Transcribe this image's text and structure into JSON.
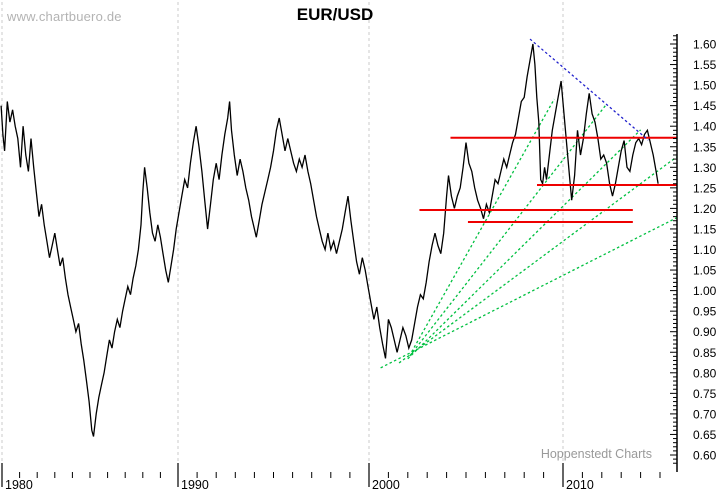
{
  "watermark": "www.chartbuero.de",
  "title": "EUR/USD",
  "credit": "Hoppenstedt Charts",
  "colors": {
    "price": "#000000",
    "support_resistance": "#ee0000",
    "uptrend_fan": "#00c040",
    "downtrend": "#2222cc",
    "grid": "#cbcbcb",
    "axis": "#000000",
    "watermark_text": "#b3b3b3",
    "credit_text": "#9a9a9a"
  },
  "chart_data": {
    "type": "line",
    "title": "EUR/USD",
    "legend": "none",
    "grid": "vertical-dashed-at-decades-only",
    "x_axis": {
      "label": "",
      "tick_labels": [
        "1980",
        "1990",
        "2000",
        "2010"
      ],
      "minor_tick_every_years": 1,
      "range_years": [
        1979.9,
        2015.9
      ]
    },
    "y_axis": {
      "side": "right",
      "tick_labels": [
        "1.60",
        "1.55",
        "1.50",
        "1.45",
        "1.40",
        "1.35",
        "1.30",
        "1.25",
        "1.20",
        "1.15",
        "1.10",
        "1.05",
        "1.00",
        "0.95",
        "0.90",
        "0.85",
        "0.80",
        "0.75",
        "0.70",
        "0.65",
        "0.60"
      ],
      "major_step": 0.05,
      "minor_step": 0.01,
      "range": [
        0.56,
        1.625
      ]
    },
    "series": [
      {
        "name": "EUR/USD monthly close",
        "color": "#000000",
        "points": [
          [
            1979.95,
            1.45
          ],
          [
            1980.05,
            1.38
          ],
          [
            1980.15,
            1.34
          ],
          [
            1980.3,
            1.46
          ],
          [
            1980.45,
            1.41
          ],
          [
            1980.6,
            1.44
          ],
          [
            1980.75,
            1.4
          ],
          [
            1980.9,
            1.37
          ],
          [
            1981.05,
            1.3
          ],
          [
            1981.2,
            1.4
          ],
          [
            1981.35,
            1.33
          ],
          [
            1981.5,
            1.29
          ],
          [
            1981.65,
            1.37
          ],
          [
            1981.8,
            1.3
          ],
          [
            1981.95,
            1.24
          ],
          [
            1982.1,
            1.18
          ],
          [
            1982.25,
            1.21
          ],
          [
            1982.4,
            1.16
          ],
          [
            1982.55,
            1.12
          ],
          [
            1982.7,
            1.08
          ],
          [
            1982.85,
            1.11
          ],
          [
            1983.0,
            1.14
          ],
          [
            1983.15,
            1.1
          ],
          [
            1983.3,
            1.06
          ],
          [
            1983.45,
            1.08
          ],
          [
            1983.6,
            1.03
          ],
          [
            1983.75,
            0.99
          ],
          [
            1983.9,
            0.96
          ],
          [
            1984.05,
            0.93
          ],
          [
            1984.2,
            0.9
          ],
          [
            1984.35,
            0.92
          ],
          [
            1984.5,
            0.87
          ],
          [
            1984.65,
            0.83
          ],
          [
            1984.8,
            0.78
          ],
          [
            1984.95,
            0.73
          ],
          [
            1985.1,
            0.66
          ],
          [
            1985.2,
            0.645
          ],
          [
            1985.35,
            0.7
          ],
          [
            1985.5,
            0.74
          ],
          [
            1985.65,
            0.77
          ],
          [
            1985.8,
            0.8
          ],
          [
            1985.95,
            0.84
          ],
          [
            1986.1,
            0.88
          ],
          [
            1986.25,
            0.86
          ],
          [
            1986.4,
            0.9
          ],
          [
            1986.55,
            0.93
          ],
          [
            1986.7,
            0.91
          ],
          [
            1986.85,
            0.95
          ],
          [
            1987.0,
            0.98
          ],
          [
            1987.15,
            1.01
          ],
          [
            1987.3,
            0.99
          ],
          [
            1987.45,
            1.03
          ],
          [
            1987.6,
            1.06
          ],
          [
            1987.75,
            1.1
          ],
          [
            1987.9,
            1.16
          ],
          [
            1988.0,
            1.24
          ],
          [
            1988.1,
            1.3
          ],
          [
            1988.25,
            1.25
          ],
          [
            1988.4,
            1.19
          ],
          [
            1988.55,
            1.14
          ],
          [
            1988.7,
            1.12
          ],
          [
            1988.85,
            1.16
          ],
          [
            1989.0,
            1.13
          ],
          [
            1989.15,
            1.09
          ],
          [
            1989.3,
            1.05
          ],
          [
            1989.45,
            1.02
          ],
          [
            1989.6,
            1.06
          ],
          [
            1989.75,
            1.1
          ],
          [
            1989.9,
            1.15
          ],
          [
            1990.05,
            1.19
          ],
          [
            1990.2,
            1.23
          ],
          [
            1990.35,
            1.27
          ],
          [
            1990.5,
            1.25
          ],
          [
            1990.65,
            1.31
          ],
          [
            1990.8,
            1.36
          ],
          [
            1990.95,
            1.4
          ],
          [
            1991.1,
            1.35
          ],
          [
            1991.25,
            1.29
          ],
          [
            1991.4,
            1.22
          ],
          [
            1991.55,
            1.15
          ],
          [
            1991.7,
            1.21
          ],
          [
            1991.85,
            1.27
          ],
          [
            1992.0,
            1.31
          ],
          [
            1992.15,
            1.27
          ],
          [
            1992.3,
            1.33
          ],
          [
            1992.45,
            1.38
          ],
          [
            1992.6,
            1.42
          ],
          [
            1992.7,
            1.46
          ],
          [
            1992.8,
            1.39
          ],
          [
            1992.95,
            1.33
          ],
          [
            1993.1,
            1.28
          ],
          [
            1993.25,
            1.32
          ],
          [
            1993.4,
            1.29
          ],
          [
            1993.55,
            1.25
          ],
          [
            1993.7,
            1.22
          ],
          [
            1993.85,
            1.18
          ],
          [
            1994.0,
            1.15
          ],
          [
            1994.1,
            1.13
          ],
          [
            1994.25,
            1.17
          ],
          [
            1994.4,
            1.21
          ],
          [
            1994.55,
            1.24
          ],
          [
            1994.7,
            1.27
          ],
          [
            1994.85,
            1.3
          ],
          [
            1995.0,
            1.34
          ],
          [
            1995.15,
            1.39
          ],
          [
            1995.3,
            1.42
          ],
          [
            1995.45,
            1.38
          ],
          [
            1995.6,
            1.34
          ],
          [
            1995.75,
            1.37
          ],
          [
            1995.9,
            1.34
          ],
          [
            1996.05,
            1.31
          ],
          [
            1996.2,
            1.29
          ],
          [
            1996.35,
            1.32
          ],
          [
            1996.5,
            1.3
          ],
          [
            1996.65,
            1.33
          ],
          [
            1996.8,
            1.29
          ],
          [
            1996.95,
            1.26
          ],
          [
            1997.1,
            1.22
          ],
          [
            1997.25,
            1.18
          ],
          [
            1997.4,
            1.15
          ],
          [
            1997.55,
            1.12
          ],
          [
            1997.7,
            1.1
          ],
          [
            1997.85,
            1.14
          ],
          [
            1998.0,
            1.1
          ],
          [
            1998.15,
            1.12
          ],
          [
            1998.3,
            1.09
          ],
          [
            1998.45,
            1.12
          ],
          [
            1998.6,
            1.15
          ],
          [
            1998.75,
            1.19
          ],
          [
            1998.9,
            1.23
          ],
          [
            1999.05,
            1.17
          ],
          [
            1999.2,
            1.12
          ],
          [
            1999.35,
            1.07
          ],
          [
            1999.5,
            1.04
          ],
          [
            1999.65,
            1.08
          ],
          [
            1999.8,
            1.05
          ],
          [
            1999.95,
            1.01
          ],
          [
            2000.1,
            0.97
          ],
          [
            2000.25,
            0.93
          ],
          [
            2000.4,
            0.96
          ],
          [
            2000.55,
            0.91
          ],
          [
            2000.7,
            0.87
          ],
          [
            2000.85,
            0.835
          ],
          [
            2001.0,
            0.93
          ],
          [
            2001.15,
            0.91
          ],
          [
            2001.3,
            0.88
          ],
          [
            2001.45,
            0.85
          ],
          [
            2001.6,
            0.88
          ],
          [
            2001.75,
            0.91
          ],
          [
            2001.9,
            0.89
          ],
          [
            2002.05,
            0.86
          ],
          [
            2002.2,
            0.88
          ],
          [
            2002.35,
            0.92
          ],
          [
            2002.5,
            0.96
          ],
          [
            2002.65,
            0.99
          ],
          [
            2002.8,
            0.98
          ],
          [
            2002.95,
            1.02
          ],
          [
            2003.1,
            1.07
          ],
          [
            2003.25,
            1.11
          ],
          [
            2003.4,
            1.14
          ],
          [
            2003.55,
            1.11
          ],
          [
            2003.7,
            1.09
          ],
          [
            2003.85,
            1.14
          ],
          [
            2004.0,
            1.23
          ],
          [
            2004.1,
            1.28
          ],
          [
            2004.25,
            1.23
          ],
          [
            2004.4,
            1.2
          ],
          [
            2004.55,
            1.23
          ],
          [
            2004.7,
            1.25
          ],
          [
            2004.85,
            1.3
          ],
          [
            2005.0,
            1.36
          ],
          [
            2005.15,
            1.31
          ],
          [
            2005.3,
            1.29
          ],
          [
            2005.45,
            1.25
          ],
          [
            2005.6,
            1.22
          ],
          [
            2005.75,
            1.2
          ],
          [
            2005.9,
            1.175
          ],
          [
            2006.05,
            1.21
          ],
          [
            2006.2,
            1.19
          ],
          [
            2006.35,
            1.23
          ],
          [
            2006.5,
            1.27
          ],
          [
            2006.65,
            1.26
          ],
          [
            2006.8,
            1.29
          ],
          [
            2006.95,
            1.32
          ],
          [
            2007.1,
            1.3
          ],
          [
            2007.25,
            1.33
          ],
          [
            2007.4,
            1.36
          ],
          [
            2007.55,
            1.38
          ],
          [
            2007.7,
            1.42
          ],
          [
            2007.85,
            1.46
          ],
          [
            2008.0,
            1.47
          ],
          [
            2008.15,
            1.52
          ],
          [
            2008.3,
            1.56
          ],
          [
            2008.45,
            1.6
          ],
          [
            2008.55,
            1.55
          ],
          [
            2008.65,
            1.47
          ],
          [
            2008.75,
            1.41
          ],
          [
            2008.85,
            1.27
          ],
          [
            2008.95,
            1.26
          ],
          [
            2009.05,
            1.3
          ],
          [
            2009.15,
            1.27
          ],
          [
            2009.3,
            1.33
          ],
          [
            2009.45,
            1.39
          ],
          [
            2009.6,
            1.43
          ],
          [
            2009.75,
            1.47
          ],
          [
            2009.9,
            1.51
          ],
          [
            2010.05,
            1.43
          ],
          [
            2010.2,
            1.35
          ],
          [
            2010.35,
            1.27
          ],
          [
            2010.45,
            1.22
          ],
          [
            2010.6,
            1.28
          ],
          [
            2010.75,
            1.39
          ],
          [
            2010.9,
            1.33
          ],
          [
            2011.05,
            1.37
          ],
          [
            2011.2,
            1.43
          ],
          [
            2011.35,
            1.48
          ],
          [
            2011.5,
            1.43
          ],
          [
            2011.65,
            1.41
          ],
          [
            2011.8,
            1.37
          ],
          [
            2011.95,
            1.32
          ],
          [
            2012.1,
            1.33
          ],
          [
            2012.25,
            1.31
          ],
          [
            2012.4,
            1.26
          ],
          [
            2012.55,
            1.23
          ],
          [
            2012.7,
            1.26
          ],
          [
            2012.85,
            1.3
          ],
          [
            2013.0,
            1.34
          ],
          [
            2013.15,
            1.365
          ],
          [
            2013.3,
            1.3
          ],
          [
            2013.45,
            1.29
          ],
          [
            2013.6,
            1.33
          ],
          [
            2013.75,
            1.36
          ],
          [
            2013.9,
            1.37
          ],
          [
            2014.05,
            1.355
          ],
          [
            2014.2,
            1.38
          ],
          [
            2014.35,
            1.39
          ],
          [
            2014.5,
            1.36
          ],
          [
            2014.65,
            1.33
          ],
          [
            2014.8,
            1.29
          ],
          [
            2014.9,
            1.26
          ]
        ]
      }
    ],
    "horizontal_lines": [
      {
        "name": "resistance-1.37",
        "price": 1.372,
        "from_year": 2004.2,
        "to_year": 2015.85,
        "color": "#ee0000",
        "style": "solid"
      },
      {
        "name": "support-1.26",
        "price": 1.257,
        "from_year": 2008.66,
        "to_year": 2015.85,
        "color": "#ee0000",
        "style": "solid"
      },
      {
        "name": "support-1.20",
        "price": 1.196,
        "from_year": 2002.6,
        "to_year": 2013.6,
        "color": "#ee0000",
        "style": "solid"
      },
      {
        "name": "support-1.17",
        "price": 1.167,
        "from_year": 2005.1,
        "to_year": 2013.6,
        "color": "#ee0000",
        "style": "solid"
      }
    ],
    "trend_lines": [
      {
        "name": "downtrend-from-2008-high",
        "color": "#2222cc",
        "style": "dotted",
        "from": [
          2008.3,
          1.612
        ],
        "to": [
          2014.4,
          1.366
        ]
      },
      {
        "name": "uptrend-fan-1-steepest",
        "color": "#00c040",
        "style": "dotted",
        "from": [
          2002.2,
          0.851
        ],
        "to": [
          2009.55,
          1.466
        ]
      },
      {
        "name": "uptrend-fan-2",
        "color": "#00c040",
        "style": "dotted",
        "from": [
          2002.1,
          0.841
        ],
        "to": [
          2012.25,
          1.454
        ]
      },
      {
        "name": "uptrend-fan-3",
        "color": "#00c040",
        "style": "dotted",
        "from": [
          2002.0,
          0.834
        ],
        "to": [
          2014.0,
          1.391
        ]
      },
      {
        "name": "uptrend-fan-4",
        "color": "#00c040",
        "style": "dotted",
        "from": [
          2001.55,
          0.824
        ],
        "to": [
          2015.85,
          1.325
        ]
      },
      {
        "name": "uptrend-fan-5-shallowest",
        "color": "#00c040",
        "style": "dotted",
        "from": [
          2000.6,
          0.812
        ],
        "to": [
          2015.85,
          1.177
        ]
      }
    ],
    "gridlines": {
      "vertical_dashed_at_years": [
        1980,
        1990,
        2000,
        2010
      ]
    }
  }
}
